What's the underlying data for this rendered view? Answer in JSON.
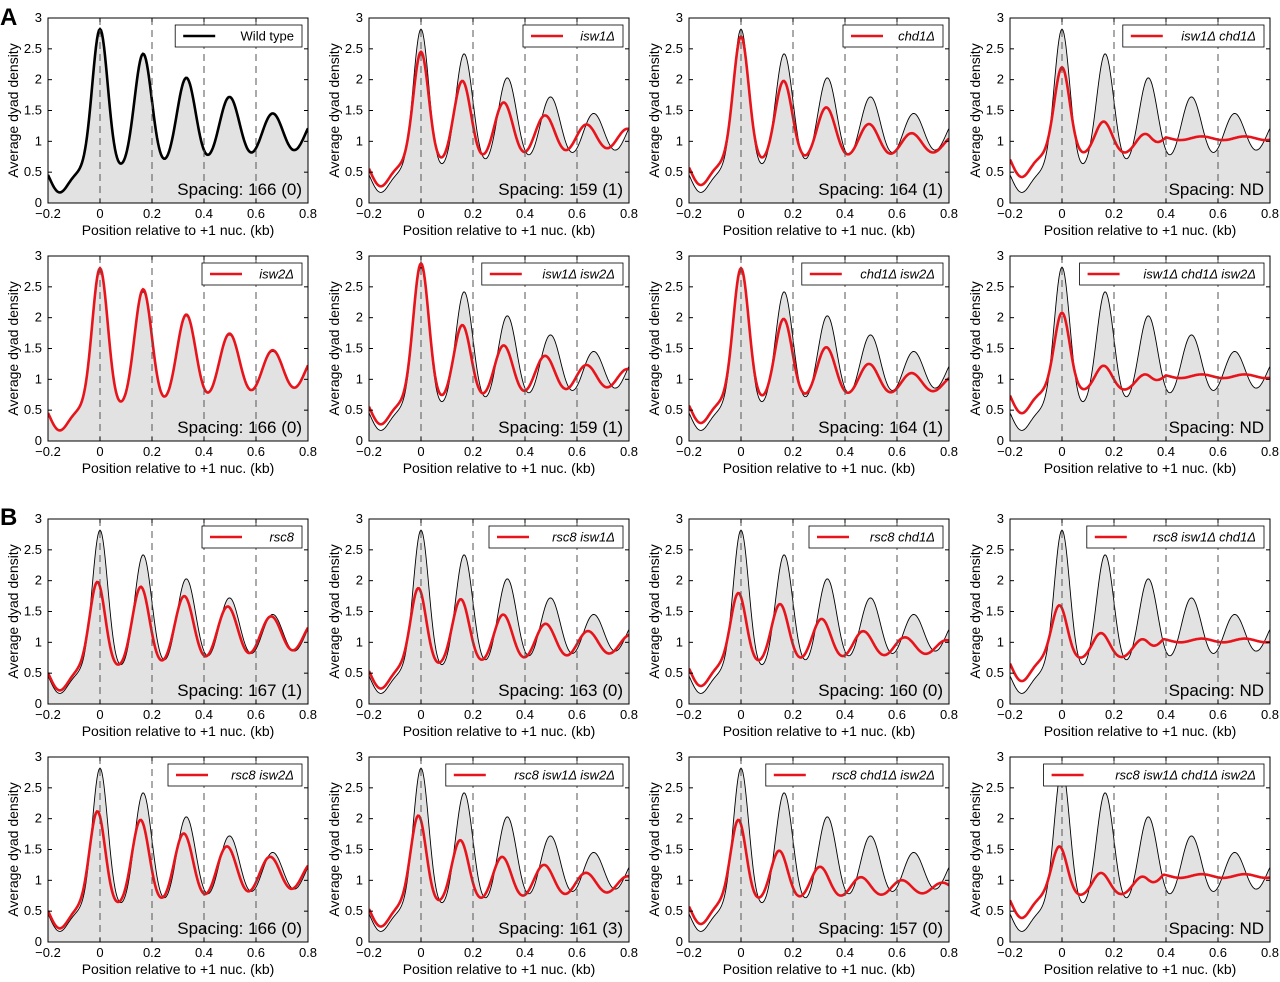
{
  "panel_labels": [
    "A",
    "B"
  ],
  "colors": {
    "reference": "#000000",
    "reference_fill": "#e2e2e2",
    "mutant": "#e8141b",
    "guide": "#555555"
  },
  "chart_data": [
    {
      "type": "line",
      "panel": "A",
      "row": 1,
      "col": 1,
      "legend": "Wild type",
      "spacing_label": "Spacing: 166 (0)",
      "series_color": "#000000",
      "is_wildtype": true,
      "peaks": [
        [
          0,
          2.82
        ],
        [
          0.166,
          2.42
        ],
        [
          0.332,
          2.03
        ],
        [
          0.498,
          1.72
        ],
        [
          0.664,
          1.45
        ]
      ],
      "baseline": 0.5,
      "flat_after": null,
      "guides": [
        0.2,
        0.4,
        0.6
      ],
      "xlabel": "Position relative to +1 nuc. (kb)",
      "ylabel": "Average dyad density",
      "xlim": [
        -0.2,
        0.8
      ],
      "ylim": [
        0,
        3
      ],
      "xticks": [
        "-0.2",
        "0",
        "0.2",
        "0.4",
        "0.6",
        "0.8"
      ],
      "yticks": [
        "0",
        "0.5",
        "1",
        "1.5",
        "2",
        "2.5",
        "3"
      ]
    },
    {
      "type": "line",
      "panel": "A",
      "row": 1,
      "col": 2,
      "legend": "isw1Δ",
      "spacing_label": "Spacing: 159 (1)",
      "series_color": "#e8141b",
      "is_wildtype": false,
      "peaks": [
        [
          0,
          2.45
        ],
        [
          0.159,
          1.98
        ],
        [
          0.318,
          1.63
        ],
        [
          0.477,
          1.42
        ],
        [
          0.636,
          1.27
        ]
      ],
      "baseline": 0.6,
      "flat_after": null,
      "guides": [
        0.2,
        0.4,
        0.6
      ],
      "xlabel": "Position relative to +1 nuc. (kb)",
      "ylabel": "Average dyad density",
      "xlim": [
        -0.2,
        0.8
      ],
      "ylim": [
        0,
        3
      ],
      "xticks": [
        "-0.2",
        "0",
        "0.2",
        "0.4",
        "0.6",
        "0.8"
      ],
      "yticks": [
        "0",
        "0.5",
        "1",
        "1.5",
        "2",
        "2.5",
        "3"
      ]
    },
    {
      "type": "line",
      "panel": "A",
      "row": 1,
      "col": 3,
      "legend": "chd1Δ",
      "spacing_label": "Spacing: 164 (1)",
      "series_color": "#e8141b",
      "is_wildtype": false,
      "peaks": [
        [
          0,
          2.7
        ],
        [
          0.164,
          1.98
        ],
        [
          0.328,
          1.55
        ],
        [
          0.492,
          1.28
        ],
        [
          0.656,
          1.13
        ]
      ],
      "baseline": 0.62,
      "flat_after": null,
      "guides": [
        0.2,
        0.4,
        0.6
      ],
      "xlabel": "Position relative to +1 nuc. (kb)",
      "ylabel": "Average dyad density",
      "xlim": [
        -0.2,
        0.8
      ],
      "ylim": [
        0,
        3
      ],
      "xticks": [
        "-0.2",
        "0",
        "0.2",
        "0.4",
        "0.6",
        "0.8"
      ],
      "yticks": [
        "0",
        "0.5",
        "1",
        "1.5",
        "2",
        "2.5",
        "3"
      ]
    },
    {
      "type": "line",
      "panel": "A",
      "row": 1,
      "col": 4,
      "legend": "isw1Δ chd1Δ",
      "spacing_label": "Spacing: ND",
      "series_color": "#e8141b",
      "is_wildtype": false,
      "peaks": [
        [
          0,
          2.2
        ],
        [
          0.16,
          1.32
        ],
        [
          0.32,
          1.12
        ]
      ],
      "baseline": 0.75,
      "flat_after": 1.05,
      "guides": [
        0.2,
        0.4,
        0.6
      ],
      "xlabel": "Position relative to +1 nuc. (kb)",
      "ylabel": "Average dyad density",
      "xlim": [
        -0.2,
        0.8
      ],
      "ylim": [
        0,
        3
      ],
      "xticks": [
        "-0.2",
        "0",
        "0.2",
        "0.4",
        "0.6",
        "0.8"
      ],
      "yticks": [
        "0",
        "0.5",
        "1",
        "1.5",
        "2",
        "2.5",
        "3"
      ]
    },
    {
      "type": "line",
      "panel": "A",
      "row": 2,
      "col": 1,
      "legend": "isw2Δ",
      "spacing_label": "Spacing: 166 (0)",
      "series_color": "#e8141b",
      "is_wildtype": false,
      "peaks": [
        [
          0,
          2.8
        ],
        [
          0.166,
          2.46
        ],
        [
          0.332,
          2.05
        ],
        [
          0.498,
          1.74
        ],
        [
          0.664,
          1.47
        ]
      ],
      "baseline": 0.5,
      "flat_after": null,
      "guides": [
        0.2,
        0.4,
        0.6
      ],
      "xlabel": "Position relative to +1 nuc. (kb)",
      "ylabel": "Average dyad density",
      "xlim": [
        -0.2,
        0.8
      ],
      "ylim": [
        0,
        3
      ],
      "xticks": [
        "-0.2",
        "0",
        "0.2",
        "0.4",
        "0.6",
        "0.8"
      ],
      "yticks": [
        "0",
        "0.5",
        "1",
        "1.5",
        "2",
        "2.5",
        "3"
      ]
    },
    {
      "type": "line",
      "panel": "A",
      "row": 2,
      "col": 2,
      "legend": "isw1Δ isw2Δ",
      "spacing_label": "Spacing: 159 (1)",
      "series_color": "#e8141b",
      "is_wildtype": false,
      "peaks": [
        [
          0,
          2.88
        ],
        [
          0.159,
          1.88
        ],
        [
          0.318,
          1.55
        ],
        [
          0.477,
          1.38
        ],
        [
          0.636,
          1.23
        ]
      ],
      "baseline": 0.6,
      "flat_after": null,
      "guides": [
        0.2,
        0.4,
        0.6
      ],
      "xlabel": "Position relative to +1 nuc. (kb)",
      "ylabel": "Average dyad density",
      "xlim": [
        -0.2,
        0.8
      ],
      "ylim": [
        0,
        3
      ],
      "xticks": [
        "-0.2",
        "0",
        "0.2",
        "0.4",
        "0.6",
        "0.8"
      ],
      "yticks": [
        "0",
        "0.5",
        "1",
        "1.5",
        "2",
        "2.5",
        "3"
      ]
    },
    {
      "type": "line",
      "panel": "A",
      "row": 2,
      "col": 3,
      "legend": "chd1Δ isw2Δ",
      "spacing_label": "Spacing: 164 (1)",
      "series_color": "#e8141b",
      "is_wildtype": false,
      "peaks": [
        [
          0,
          2.8
        ],
        [
          0.164,
          1.98
        ],
        [
          0.328,
          1.52
        ],
        [
          0.492,
          1.25
        ],
        [
          0.656,
          1.1
        ]
      ],
      "baseline": 0.62,
      "flat_after": null,
      "guides": [
        0.2,
        0.4,
        0.6
      ],
      "xlabel": "Position relative to +1 nuc. (kb)",
      "ylabel": "Average dyad density",
      "xlim": [
        -0.2,
        0.8
      ],
      "ylim": [
        0,
        3
      ],
      "xticks": [
        "-0.2",
        "0",
        "0.2",
        "0.4",
        "0.6",
        "0.8"
      ],
      "yticks": [
        "0",
        "0.5",
        "1",
        "1.5",
        "2",
        "2.5",
        "3"
      ]
    },
    {
      "type": "line",
      "panel": "A",
      "row": 2,
      "col": 4,
      "legend": "isw1Δ chd1Δ isw2Δ",
      "spacing_label": "Spacing: ND",
      "series_color": "#e8141b",
      "is_wildtype": false,
      "peaks": [
        [
          0,
          2.08
        ],
        [
          0.16,
          1.22
        ],
        [
          0.32,
          1.08
        ]
      ],
      "baseline": 0.78,
      "flat_after": 1.05,
      "guides": [
        0.2,
        0.4,
        0.6
      ],
      "xlabel": "Position relative to +1 nuc. (kb)",
      "ylabel": "Average dyad density",
      "xlim": [
        -0.2,
        0.8
      ],
      "ylim": [
        0,
        3
      ],
      "xticks": [
        "-0.2",
        "0",
        "0.2",
        "0.4",
        "0.6",
        "0.8"
      ],
      "yticks": [
        "0",
        "0.5",
        "1",
        "1.5",
        "2",
        "2.5",
        "3"
      ]
    },
    {
      "type": "line",
      "panel": "B",
      "row": 3,
      "col": 1,
      "legend": "rsc8",
      "spacing_label": "Spacing: 167 (1)",
      "series_color": "#e8141b",
      "is_wildtype": false,
      "peaks": [
        [
          -0.01,
          1.98
        ],
        [
          0.157,
          1.9
        ],
        [
          0.324,
          1.75
        ],
        [
          0.491,
          1.58
        ],
        [
          0.658,
          1.42
        ]
      ],
      "baseline": 0.55,
      "flat_after": null,
      "guides": [
        0.2,
        0.4,
        0.6
      ],
      "xlabel": "Position relative to +1 nuc. (kb)",
      "ylabel": "Average dyad density",
      "xlim": [
        -0.2,
        0.8
      ],
      "ylim": [
        0,
        3
      ],
      "xticks": [
        "-0.2",
        "0",
        "0.2",
        "0.4",
        "0.6",
        "0.8"
      ],
      "yticks": [
        "0",
        "0.5",
        "1",
        "1.5",
        "2",
        "2.5",
        "3"
      ]
    },
    {
      "type": "line",
      "panel": "B",
      "row": 3,
      "col": 2,
      "legend": "rsc8 isw1Δ",
      "spacing_label": "Spacing: 163 (0)",
      "series_color": "#e8141b",
      "is_wildtype": false,
      "peaks": [
        [
          -0.01,
          1.88
        ],
        [
          0.153,
          1.7
        ],
        [
          0.316,
          1.45
        ],
        [
          0.479,
          1.3
        ],
        [
          0.642,
          1.18
        ]
      ],
      "baseline": 0.58,
      "flat_after": null,
      "guides": [
        0.2,
        0.4,
        0.6
      ],
      "xlabel": "Position relative to +1 nuc. (kb)",
      "ylabel": "Average dyad density",
      "xlim": [
        -0.2,
        0.8
      ],
      "ylim": [
        0,
        3
      ],
      "xticks": [
        "-0.2",
        "0",
        "0.2",
        "0.4",
        "0.6",
        "0.8"
      ],
      "yticks": [
        "0",
        "0.5",
        "1",
        "1.5",
        "2",
        "2.5",
        "3"
      ]
    },
    {
      "type": "line",
      "panel": "B",
      "row": 3,
      "col": 3,
      "legend": "rsc8 chd1Δ",
      "spacing_label": "Spacing: 160 (0)",
      "series_color": "#e8141b",
      "is_wildtype": false,
      "peaks": [
        [
          -0.01,
          1.8
        ],
        [
          0.15,
          1.62
        ],
        [
          0.31,
          1.38
        ],
        [
          0.47,
          1.18
        ],
        [
          0.63,
          1.08
        ]
      ],
      "baseline": 0.62,
      "flat_after": null,
      "guides": [
        0.2,
        0.4,
        0.6
      ],
      "xlabel": "Position relative to +1 nuc. (kb)",
      "ylabel": "Average dyad density",
      "xlim": [
        -0.2,
        0.8
      ],
      "ylim": [
        0,
        3
      ],
      "xticks": [
        "-0.2",
        "0",
        "0.2",
        "0.4",
        "0.6",
        "0.8"
      ],
      "yticks": [
        "0",
        "0.5",
        "1",
        "1.5",
        "2",
        "2.5",
        "3"
      ]
    },
    {
      "type": "line",
      "panel": "B",
      "row": 3,
      "col": 4,
      "legend": "rsc8 isw1Δ chd1Δ",
      "spacing_label": "Spacing: ND",
      "series_color": "#e8141b",
      "is_wildtype": false,
      "peaks": [
        [
          -0.01,
          1.6
        ],
        [
          0.15,
          1.15
        ],
        [
          0.31,
          1.05
        ]
      ],
      "baseline": 0.7,
      "flat_after": 1.03,
      "guides": [
        0.2,
        0.4,
        0.6
      ],
      "xlabel": "Position relative to +1 nuc. (kb)",
      "ylabel": "Average dyad density",
      "xlim": [
        -0.2,
        0.8
      ],
      "ylim": [
        0,
        3
      ],
      "xticks": [
        "-0.2",
        "0",
        "0.2",
        "0.4",
        "0.6",
        "0.8"
      ],
      "yticks": [
        "0",
        "0.5",
        "1",
        "1.5",
        "2",
        "2.5",
        "3"
      ]
    },
    {
      "type": "line",
      "panel": "B",
      "row": 4,
      "col": 1,
      "legend": "rsc8 isw2Δ",
      "spacing_label": "Spacing: 166 (0)",
      "series_color": "#e8141b",
      "is_wildtype": false,
      "peaks": [
        [
          -0.01,
          2.12
        ],
        [
          0.156,
          1.98
        ],
        [
          0.322,
          1.76
        ],
        [
          0.488,
          1.55
        ],
        [
          0.654,
          1.38
        ]
      ],
      "baseline": 0.55,
      "flat_after": null,
      "guides": [
        0.2,
        0.4,
        0.6
      ],
      "xlabel": "Position relative to +1 nuc. (kb)",
      "ylabel": "Average dyad density",
      "xlim": [
        -0.2,
        0.8
      ],
      "ylim": [
        0,
        3
      ],
      "xticks": [
        "-0.2",
        "0",
        "0.2",
        "0.4",
        "0.6",
        "0.8"
      ],
      "yticks": [
        "0",
        "0.5",
        "1",
        "1.5",
        "2",
        "2.5",
        "3"
      ]
    },
    {
      "type": "line",
      "panel": "B",
      "row": 4,
      "col": 2,
      "legend": "rsc8 isw1Δ isw2Δ",
      "spacing_label": "Spacing: 161 (3)",
      "series_color": "#e8141b",
      "is_wildtype": false,
      "peaks": [
        [
          -0.01,
          2.05
        ],
        [
          0.151,
          1.65
        ],
        [
          0.312,
          1.38
        ],
        [
          0.473,
          1.25
        ],
        [
          0.634,
          1.12
        ]
      ],
      "baseline": 0.58,
      "flat_after": null,
      "guides": [
        0.2,
        0.4,
        0.6
      ],
      "xlabel": "Position relative to +1 nuc. (kb)",
      "ylabel": "Average dyad density",
      "xlim": [
        -0.2,
        0.8
      ],
      "ylim": [
        0,
        3
      ],
      "xticks": [
        "-0.2",
        "0",
        "0.2",
        "0.4",
        "0.6",
        "0.8"
      ],
      "yticks": [
        "0",
        "0.5",
        "1",
        "1.5",
        "2",
        "2.5",
        "3"
      ]
    },
    {
      "type": "line",
      "panel": "B",
      "row": 4,
      "col": 3,
      "legend": "rsc8 chd1Δ isw2Δ",
      "spacing_label": "Spacing: 157 (0)",
      "series_color": "#e8141b",
      "is_wildtype": false,
      "peaks": [
        [
          -0.01,
          1.98
        ],
        [
          0.147,
          1.48
        ],
        [
          0.304,
          1.22
        ],
        [
          0.461,
          1.05
        ],
        [
          0.618,
          1.0
        ]
      ],
      "baseline": 0.62,
      "flat_after": null,
      "guides": [
        0.2,
        0.4,
        0.6
      ],
      "xlabel": "Position relative to +1 nuc. (kb)",
      "ylabel": "Average dyad density",
      "xlim": [
        -0.2,
        0.8
      ],
      "ylim": [
        0,
        3
      ],
      "xticks": [
        "-0.2",
        "0",
        "0.2",
        "0.4",
        "0.6",
        "0.8"
      ],
      "yticks": [
        "0",
        "0.5",
        "1",
        "1.5",
        "2",
        "2.5",
        "3"
      ]
    },
    {
      "type": "line",
      "panel": "B",
      "row": 4,
      "col": 4,
      "legend": "rsc8 isw1Δ chd1Δ isw2Δ",
      "spacing_label": "Spacing: ND",
      "series_color": "#e8141b",
      "is_wildtype": false,
      "peaks": [
        [
          -0.01,
          1.55
        ],
        [
          0.15,
          1.12
        ],
        [
          0.31,
          1.06
        ]
      ],
      "baseline": 0.72,
      "flat_after": 1.07,
      "guides": [
        0.2,
        0.4,
        0.6
      ],
      "xlabel": "Position relative to +1 nuc. (kb)",
      "ylabel": "Average dyad density",
      "xlim": [
        -0.2,
        0.8
      ],
      "ylim": [
        0,
        3
      ],
      "xticks": [
        "-0.2",
        "0",
        "0.2",
        "0.4",
        "0.6",
        "0.8"
      ],
      "yticks": [
        "0",
        "0.5",
        "1",
        "1.5",
        "2",
        "2.5",
        "3"
      ]
    }
  ]
}
